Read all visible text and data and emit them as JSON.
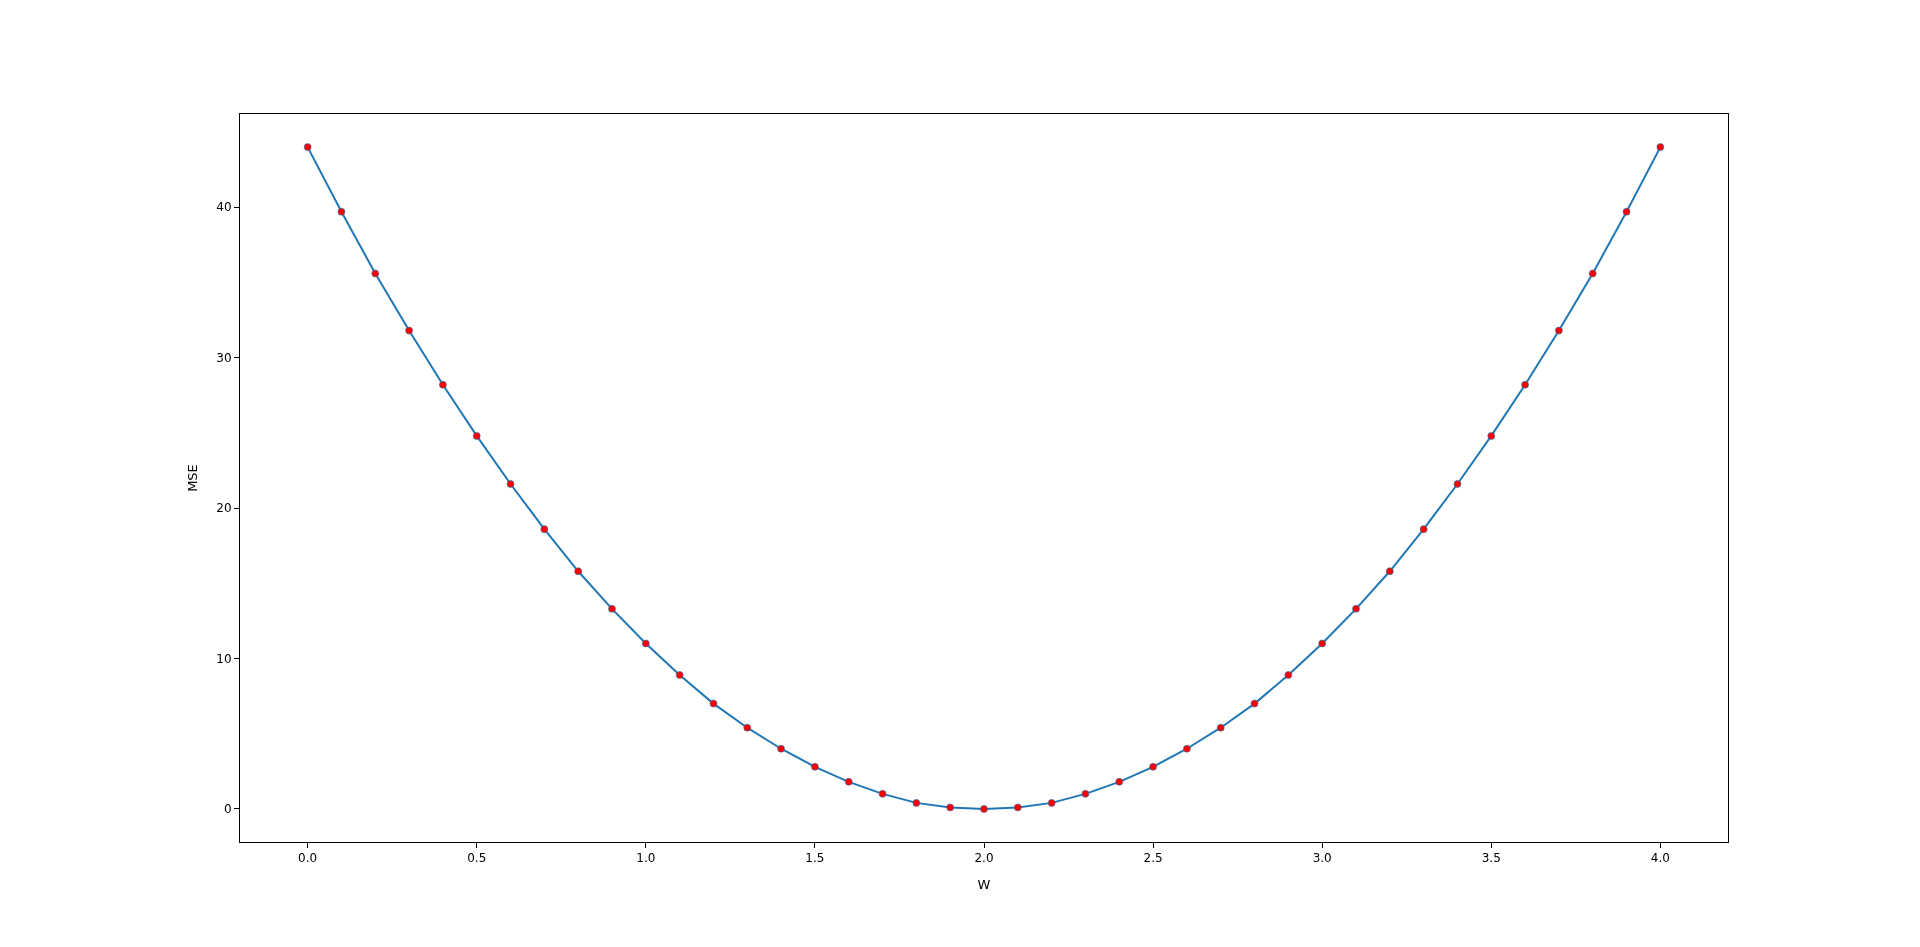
{
  "chart_data": {
    "type": "line",
    "xlabel": "W",
    "ylabel": "MSE",
    "x": [
      0,
      0.1,
      0.2,
      0.3,
      0.4,
      0.5,
      0.6,
      0.7,
      0.8,
      0.9,
      1,
      1.1,
      1.2,
      1.3,
      1.4,
      1.5,
      1.6,
      1.7,
      1.8,
      1.9,
      2,
      2.1,
      2.2,
      2.3,
      2.4,
      2.5,
      2.6,
      2.7,
      2.8,
      2.9,
      3,
      3.1,
      3.2,
      3.3,
      3.4,
      3.5,
      3.6,
      3.7,
      3.8,
      3.9,
      4
    ],
    "series": [
      {
        "color": "#1f77b4",
        "marker": "none",
        "values": [
          44,
          39.7,
          35.6,
          31.8,
          28.2,
          24.8,
          21.6,
          18.6,
          15.8,
          13.3,
          11,
          8.9,
          7,
          5.4,
          4,
          2.8,
          1.8,
          1,
          0.4,
          0.1,
          0,
          0.1,
          0.4,
          1,
          1.8,
          2.8,
          4,
          5.4,
          7,
          8.9,
          11,
          13.3,
          15.8,
          18.6,
          21.6,
          24.8,
          28.2,
          31.8,
          35.6,
          39.7,
          44
        ]
      },
      {
        "type": "scatter",
        "color": "#ff0000",
        "marker": "circle",
        "values": [
          44,
          39.7,
          35.6,
          31.8,
          28.2,
          24.8,
          21.6,
          18.6,
          15.8,
          13.3,
          11,
          8.9,
          7,
          5.4,
          4,
          2.8,
          1.8,
          1,
          0.4,
          0.1,
          0,
          0.1,
          0.4,
          1,
          1.8,
          2.8,
          4,
          5.4,
          7,
          8.9,
          11,
          13.3,
          15.8,
          18.6,
          21.6,
          24.8,
          28.2,
          31.8,
          35.6,
          39.7,
          44
        ]
      }
    ],
    "xlim": [
      -0.2,
      4.2
    ],
    "xticks": [
      {
        "value": 0,
        "label": "0.0"
      },
      {
        "value": 0.5,
        "label": "0.5"
      },
      {
        "value": 1,
        "label": "1.0"
      },
      {
        "value": 1.5,
        "label": "1.5"
      },
      {
        "value": 2,
        "label": "2.0"
      },
      {
        "value": 2.5,
        "label": "2.5"
      },
      {
        "value": 3,
        "label": "3.0"
      },
      {
        "value": 3.5,
        "label": "3.5"
      },
      {
        "value": 4,
        "label": "4.0"
      }
    ],
    "ylim": [
      -2.2,
      46.2
    ],
    "yticks": [
      0,
      10,
      20,
      30,
      40
    ]
  }
}
